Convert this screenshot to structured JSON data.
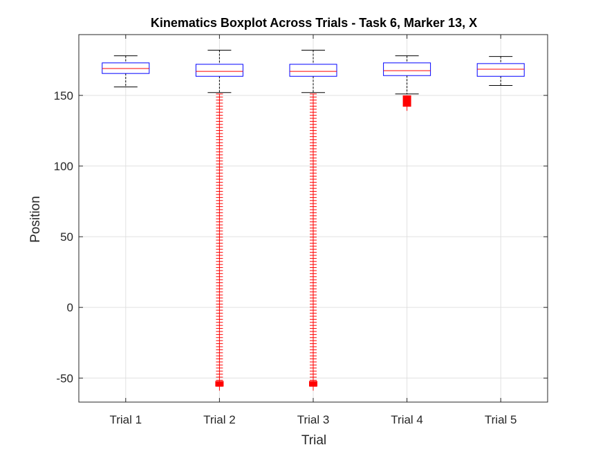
{
  "chart_data": {
    "type": "boxplot",
    "title": "Kinematics Boxplot Across Trials - Task 6, Marker 13, X",
    "xlabel": "Trial",
    "ylabel": "Position",
    "ylim": [
      -67,
      193
    ],
    "yticks": [
      -50,
      0,
      50,
      100,
      150
    ],
    "grid": true,
    "categories": [
      "Trial 1",
      "Trial 2",
      "Trial 3",
      "Trial 4",
      "Trial 5"
    ],
    "boxes": [
      {
        "name": "Trial 1",
        "whisker_low": 156,
        "q1": 165.5,
        "median": 169,
        "q3": 173,
        "whisker_high": 178,
        "outliers": {
          "min": null,
          "max": null
        }
      },
      {
        "name": "Trial 2",
        "whisker_low": 152,
        "q1": 163.5,
        "median": 167,
        "q3": 172,
        "whisker_high": 182,
        "outliers": {
          "min": -56,
          "max": 151
        }
      },
      {
        "name": "Trial 3",
        "whisker_low": 152,
        "q1": 163.5,
        "median": 167,
        "q3": 172,
        "whisker_high": 182,
        "outliers": {
          "min": -56,
          "max": 151
        }
      },
      {
        "name": "Trial 4",
        "whisker_low": 151,
        "q1": 164,
        "median": 167.5,
        "q3": 173,
        "whisker_high": 178,
        "outliers": {
          "min": 142,
          "max": 150
        }
      },
      {
        "name": "Trial 5",
        "whisker_low": 157,
        "q1": 163.5,
        "median": 168.5,
        "q3": 172.5,
        "whisker_high": 177.5,
        "outliers": {
          "min": null,
          "max": null
        }
      }
    ],
    "colors": {
      "box": "#0000ff",
      "median": "#ff0000",
      "whisker": "#000000",
      "outlier": "#ff0000",
      "grid": "#e0e0e0",
      "axis": "#262626"
    }
  }
}
